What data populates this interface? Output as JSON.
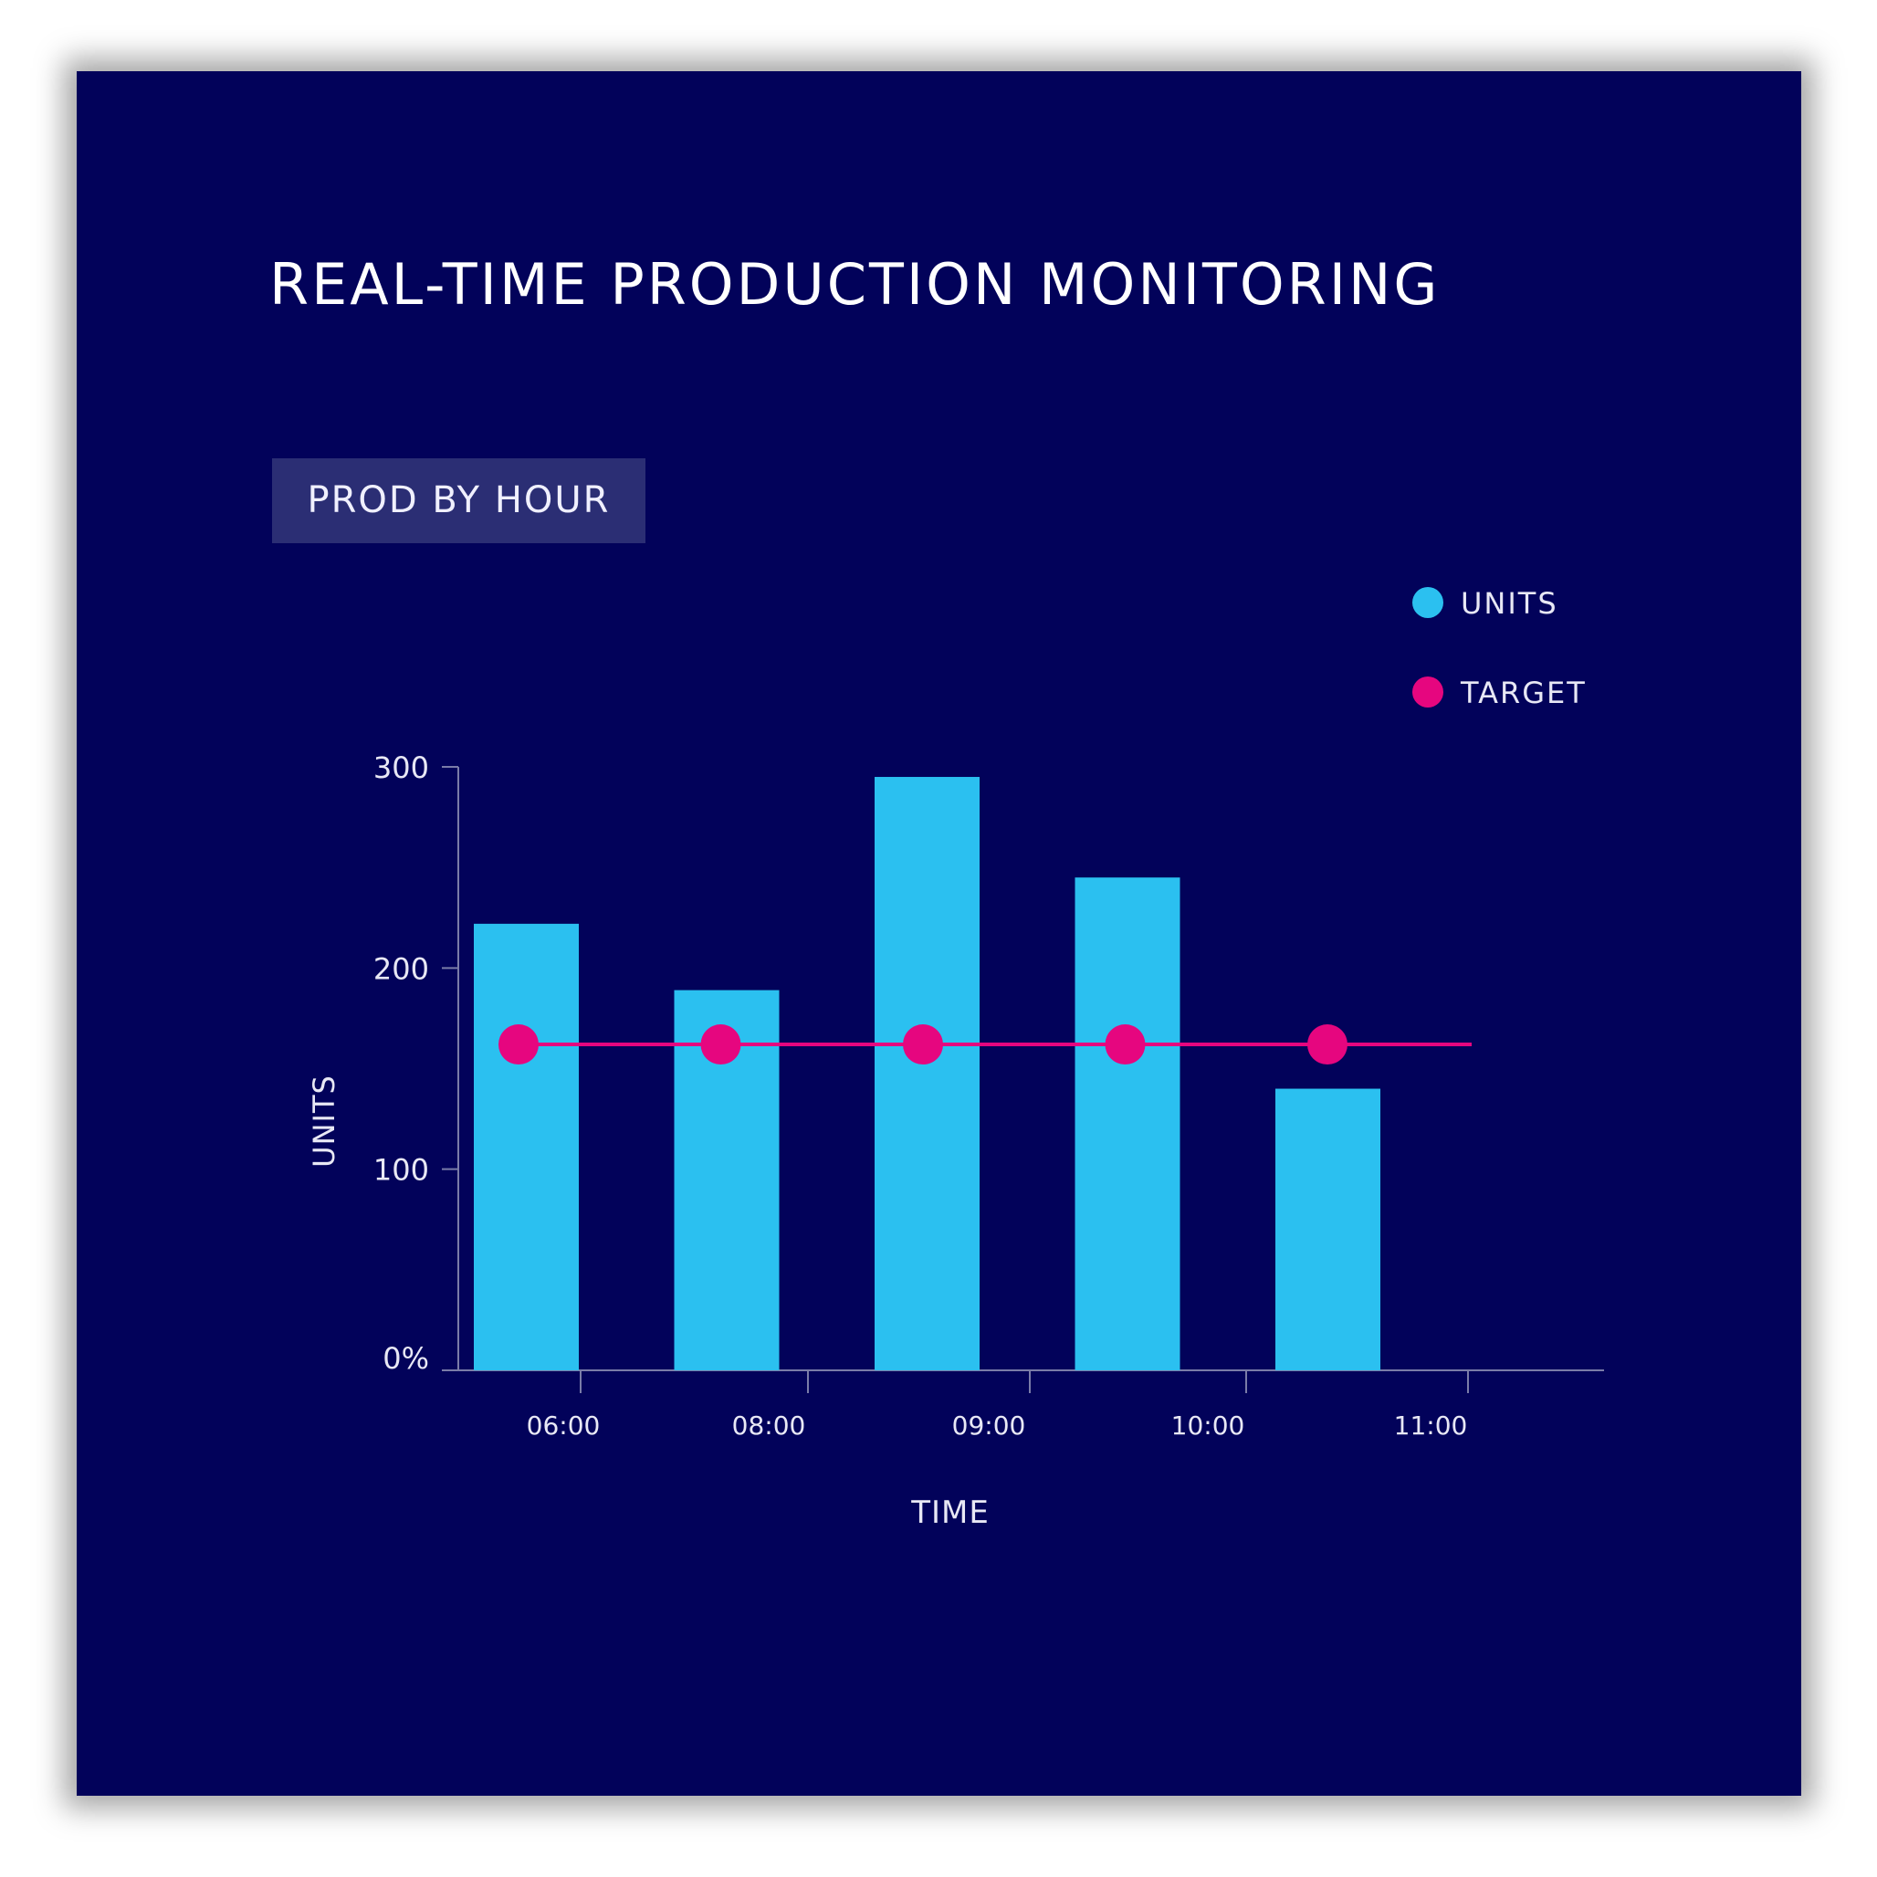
{
  "header": {
    "title": "REAL-TIME PRODUCTION MONITORING",
    "badge": "PROD BY HOUR"
  },
  "colors": {
    "background": "#02025a",
    "units_bar": "#2bc0f0",
    "target": "#e6067f",
    "axis": "#7a7ca8",
    "text": "#e8e8f5"
  },
  "chart_data": {
    "type": "bar",
    "title": "PROD BY HOUR",
    "xlabel": "TIME",
    "ylabel": "UNITS",
    "categories": [
      "06:00",
      "08:00",
      "09:00",
      "10:00",
      "11:00"
    ],
    "yticks": [
      {
        "value": 0,
        "label": "0%"
      },
      {
        "value": 100,
        "label": "100"
      },
      {
        "value": 200,
        "label": "200"
      },
      {
        "value": 300,
        "label": "300"
      }
    ],
    "ylim": [
      0,
      300
    ],
    "legend_position": "top-right",
    "series": [
      {
        "name": "UNITS",
        "type": "bar",
        "values": [
          222,
          189,
          295,
          245,
          140
        ]
      },
      {
        "name": "TARGET",
        "type": "line",
        "values": [
          162,
          162,
          162,
          162,
          162
        ]
      }
    ],
    "grid": false
  }
}
